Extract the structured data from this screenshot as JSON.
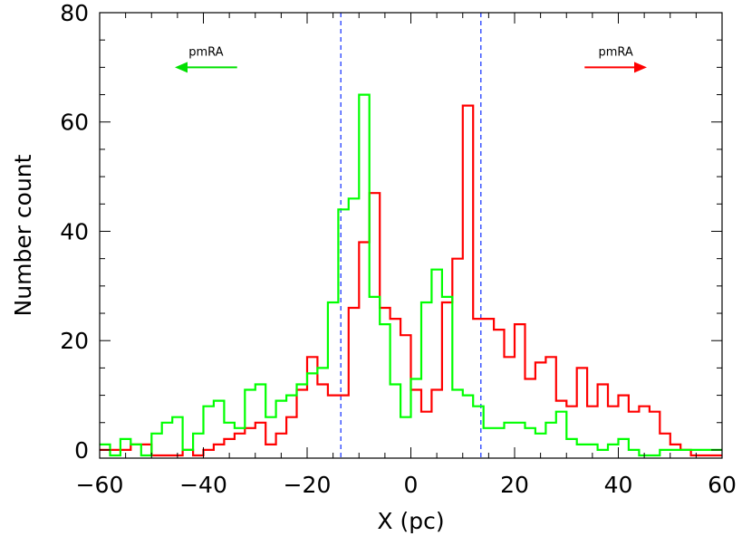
{
  "chart_data": {
    "type": "step-histogram",
    "xlabel": "X (pc)",
    "ylabel": "Number count",
    "xlim": [
      -60,
      60
    ],
    "ylim": [
      -1.5,
      80
    ],
    "x_ticks": [
      -60,
      -40,
      -20,
      0,
      20,
      40,
      60
    ],
    "x_tick_labels": [
      "−60",
      "−40",
      "−20",
      "0",
      "20",
      "40",
      "60"
    ],
    "y_ticks": [
      0,
      20,
      40,
      60,
      80
    ],
    "y_tick_labels": [
      "0",
      "20",
      "40",
      "60",
      "80"
    ],
    "bin_width": 2,
    "vlines": [
      -13.5,
      13.5
    ],
    "vline_color": "#1f3bff",
    "annotations": [
      {
        "text": "pmRA",
        "direction": "left",
        "color": "#00e000",
        "x_from": -33.5,
        "x_to": -45.5,
        "y": 70
      },
      {
        "text": "pmRA",
        "direction": "right",
        "color": "#ff0000",
        "x_from": 33.5,
        "x_to": 45.5,
        "y": 70
      }
    ],
    "series": [
      {
        "color": "#ff0000",
        "x": [
          -60,
          -58,
          -56,
          -54,
          -52,
          -50,
          -48,
          -46,
          -44,
          -42,
          -40,
          -38,
          -36,
          -34,
          -32,
          -30,
          -28,
          -26,
          -24,
          -22,
          -20,
          -18,
          -16,
          -14,
          -12,
          -10,
          -8,
          -6,
          -4,
          -2,
          0,
          2,
          4,
          6,
          8,
          10,
          12,
          14,
          16,
          18,
          20,
          22,
          24,
          26,
          28,
          30,
          32,
          34,
          36,
          38,
          40,
          42,
          44,
          46,
          48,
          50,
          52,
          54,
          56,
          58
        ],
        "values": [
          0,
          0,
          0,
          1,
          1,
          -1,
          -1,
          -1,
          0,
          -1,
          0,
          1,
          2,
          3,
          4,
          5,
          1,
          3,
          6,
          11,
          17,
          12,
          10,
          10,
          26,
          38,
          47,
          26,
          24,
          21,
          11,
          7,
          11,
          27,
          35,
          63,
          24,
          24,
          22,
          17,
          23,
          13,
          16,
          17,
          9,
          8,
          15,
          8,
          12,
          8,
          10,
          7,
          8,
          7,
          3,
          1,
          0,
          -1,
          -1,
          -1
        ]
      },
      {
        "color": "#00ff00",
        "x": [
          -60,
          -58,
          -56,
          -54,
          -52,
          -50,
          -48,
          -46,
          -44,
          -42,
          -40,
          -38,
          -36,
          -34,
          -32,
          -30,
          -28,
          -26,
          -24,
          -22,
          -20,
          -18,
          -16,
          -14,
          -12,
          -10,
          -8,
          -6,
          -4,
          -2,
          0,
          2,
          4,
          6,
          8,
          10,
          12,
          14,
          16,
          18,
          20,
          22,
          24,
          26,
          28,
          30,
          32,
          34,
          36,
          38,
          40,
          42,
          44,
          46,
          48,
          50,
          52,
          54,
          56,
          58
        ],
        "values": [
          1,
          -1,
          2,
          1,
          -1,
          3,
          5,
          6,
          0,
          3,
          8,
          9,
          5,
          4,
          11,
          12,
          6,
          9,
          10,
          12,
          14,
          15,
          27,
          44,
          46,
          65,
          28,
          23,
          12,
          6,
          13,
          27,
          33,
          28,
          11,
          10,
          8,
          4,
          4,
          5,
          5,
          4,
          3,
          5,
          7,
          2,
          1,
          1,
          0,
          1,
          2,
          0,
          -1,
          -1,
          0,
          0,
          0,
          0,
          0,
          0
        ]
      }
    ]
  }
}
